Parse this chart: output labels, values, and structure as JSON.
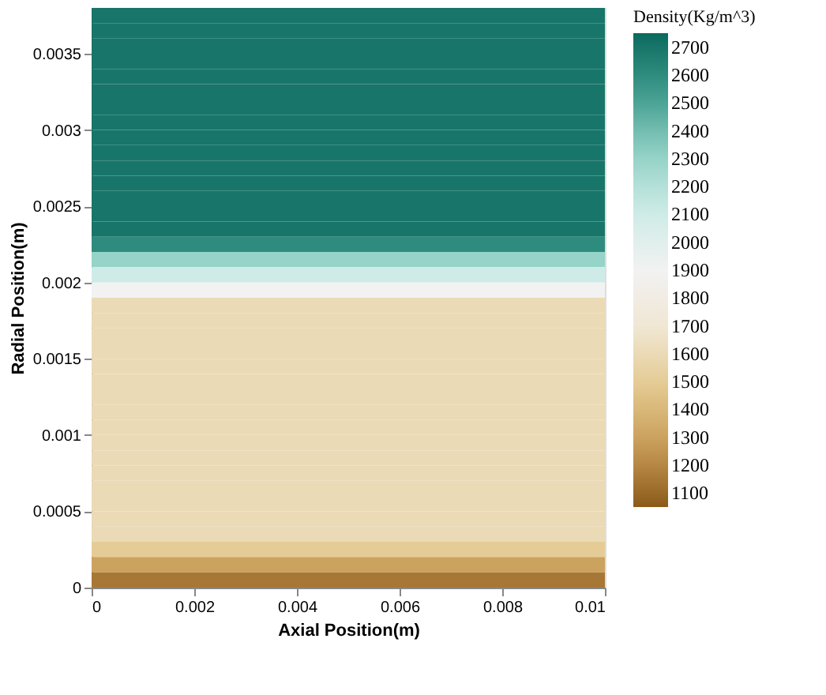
{
  "chart_data": {
    "type": "heatmap",
    "xlabel": "Axial Position(m)",
    "ylabel": "Radial Position(m)",
    "clabel": "Density(Kg/m^3)",
    "xlim": [
      0,
      0.01
    ],
    "xticks": [
      0,
      0.002,
      0.004,
      0.006,
      0.008,
      0.01
    ],
    "ylim": [
      0,
      0.0038
    ],
    "yticks": [
      0,
      0.0005,
      0.001,
      0.0015,
      0.002,
      0.0025,
      0.003,
      0.0035
    ],
    "clim": [
      1050,
      2750
    ],
    "cticks": [
      1100,
      1200,
      1300,
      1400,
      1500,
      1600,
      1700,
      1800,
      1900,
      2000,
      2100,
      2200,
      2300,
      2400,
      2500,
      2600,
      2700
    ],
    "cells": [
      [
        2700
      ],
      [
        2700
      ],
      [
        2700
      ],
      [
        2700
      ],
      [
        2700
      ],
      [
        2700
      ],
      [
        2700
      ],
      [
        2700
      ],
      [
        2700
      ],
      [
        2700
      ],
      [
        2700
      ],
      [
        2700
      ],
      [
        2700
      ],
      [
        2700
      ],
      [
        2700
      ],
      [
        2600
      ],
      [
        2300
      ],
      [
        2100
      ],
      [
        1900
      ],
      [
        1600
      ],
      [
        1600
      ],
      [
        1600
      ],
      [
        1600
      ],
      [
        1600
      ],
      [
        1600
      ],
      [
        1600
      ],
      [
        1600
      ],
      [
        1600
      ],
      [
        1600
      ],
      [
        1600
      ],
      [
        1600
      ],
      [
        1600
      ],
      [
        1600
      ],
      [
        1600
      ],
      [
        1600
      ],
      [
        1500
      ],
      [
        1300
      ],
      [
        1150
      ]
    ],
    "grid": false
  }
}
